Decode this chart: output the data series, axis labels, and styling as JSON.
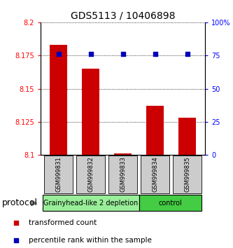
{
  "title": "GDS5113 / 10406898",
  "samples": [
    "GSM999831",
    "GSM999832",
    "GSM999833",
    "GSM999834",
    "GSM999835"
  ],
  "red_values": [
    8.183,
    8.165,
    8.101,
    8.137,
    8.128
  ],
  "blue_values": [
    76,
    76,
    76,
    76,
    76
  ],
  "ylim_left": [
    8.1,
    8.2
  ],
  "ylim_right": [
    0,
    100
  ],
  "yticks_left": [
    8.1,
    8.125,
    8.15,
    8.175,
    8.2
  ],
  "yticks_right": [
    0,
    25,
    50,
    75,
    100
  ],
  "ytick_labels_left": [
    "8.1",
    "8.125",
    "8.15",
    "8.175",
    "8.2"
  ],
  "ytick_labels_right": [
    "0",
    "25",
    "50",
    "75",
    "100%"
  ],
  "group0_label": "Grainyhead-like 2 depletion",
  "group0_color": "#99ee99",
  "group1_label": "control",
  "group1_color": "#44cc44",
  "bar_color": "#cc0000",
  "dot_color": "#0000bb",
  "legend_label0": "transformed count",
  "legend_label1": "percentile rank within the sample",
  "bar_width": 0.55,
  "tick_label_box_color": "#cccccc",
  "title_fontsize": 10,
  "tick_fontsize": 7,
  "sample_fontsize": 6,
  "group_fontsize": 7,
  "legend_fontsize": 7.5,
  "protocol_fontsize": 9
}
